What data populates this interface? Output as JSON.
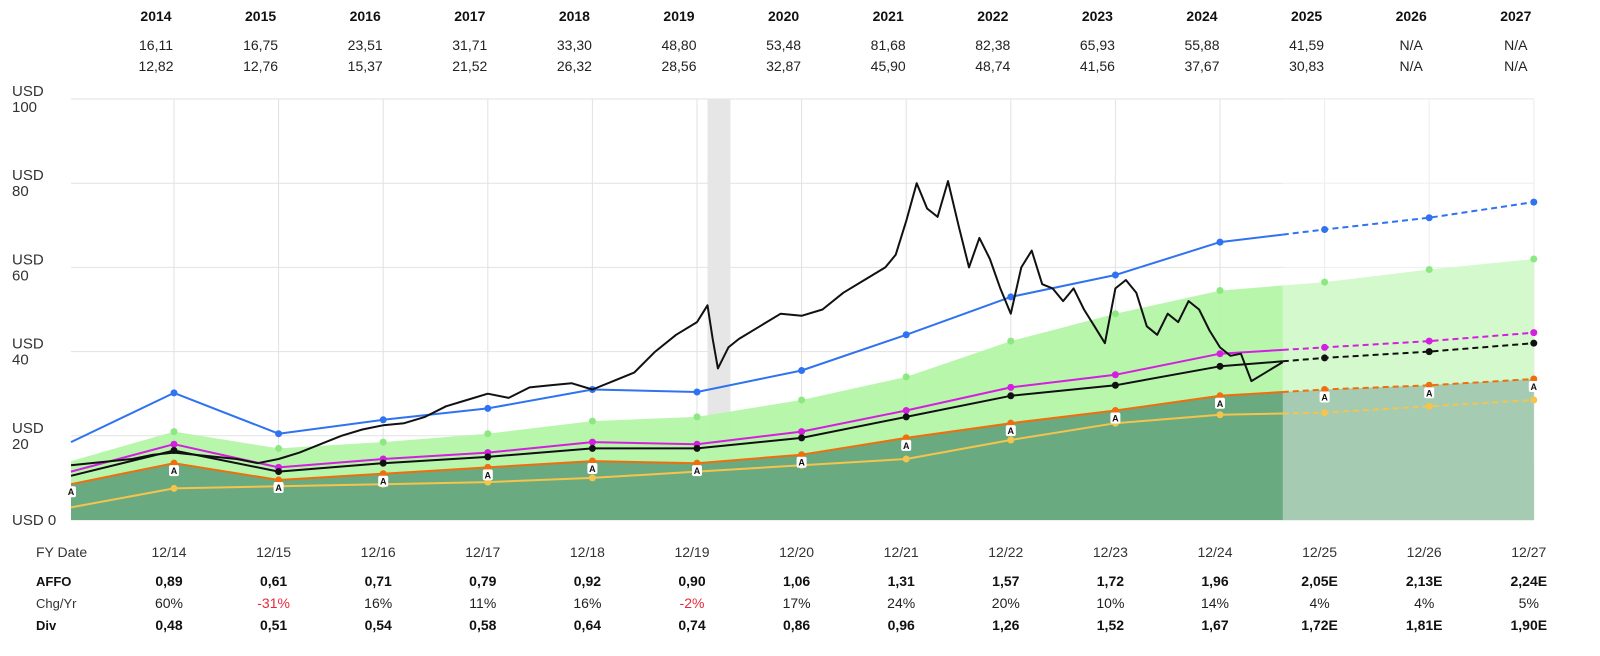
{
  "chart_data": {
    "type": "line",
    "y_unit": "USD",
    "ylim": [
      0,
      100
    ],
    "y_ticks": [
      {
        "label": "USD 0",
        "value": 0
      },
      {
        "label": "USD 20",
        "value": 20
      },
      {
        "label": "USD 40",
        "value": 40
      },
      {
        "label": "USD 60",
        "value": 60
      },
      {
        "label": "USD 80",
        "value": 80
      },
      {
        "label": "USD 100",
        "value": 100
      }
    ],
    "grid": true,
    "fy_date_label": "FY Date",
    "year_labels": [
      "2014",
      "2015",
      "2016",
      "2017",
      "2018",
      "2019",
      "2020",
      "2021",
      "2022",
      "2023",
      "2024",
      "2025",
      "2026",
      "2027"
    ],
    "price_high": [
      "16,11",
      "16,75",
      "23,51",
      "31,71",
      "33,30",
      "48,80",
      "53,48",
      "81,68",
      "82,38",
      "65,93",
      "55,88",
      "41,59",
      "N/A",
      "N/A"
    ],
    "price_low": [
      "12,82",
      "12,76",
      "15,37",
      "21,52",
      "26,32",
      "28,56",
      "32,87",
      "45,90",
      "48,74",
      "41,56",
      "37,67",
      "30,83",
      "N/A",
      "N/A"
    ],
    "x_labels": [
      "12/14",
      "12/15",
      "12/16",
      "12/17",
      "12/18",
      "12/19",
      "12/20",
      "12/21",
      "12/22",
      "12/23",
      "12/24",
      "12/25",
      "12/26",
      "12/27"
    ],
    "fiscal_x": [
      2014,
      2015,
      2016,
      2017,
      2018,
      2019,
      2020,
      2021,
      2022,
      2023,
      2024,
      2025,
      2026,
      2027
    ],
    "forecast_start": 2024.6,
    "recession_band": [
      2019.1,
      2019.32
    ],
    "colors": {
      "blue": "#2f73f0",
      "green_band": "#b3f5a6",
      "dark_green": "#6aaa80",
      "magenta": "#d41ee0",
      "black": "#111111",
      "orange": "#f06e0c",
      "yellow": "#f5c44c",
      "negative": "#e8283c"
    },
    "series": [
      {
        "id": "upper",
        "values": [
          18.5,
          30.2,
          20.5,
          23.8,
          26.5,
          31.0,
          30.4,
          35.5,
          44.0,
          53.0,
          58.2,
          66.0,
          69.0,
          71.8,
          75.5
        ]
      },
      {
        "id": "band",
        "values": [
          14.0,
          21.0,
          17.0,
          18.5,
          20.5,
          23.5,
          24.5,
          28.5,
          34.0,
          42.5,
          49.0,
          54.5,
          56.5,
          59.5,
          62.0
        ]
      },
      {
        "id": "magenta",
        "values": [
          11.5,
          18.0,
          12.5,
          14.5,
          16.0,
          18.5,
          18.0,
          21.0,
          26.0,
          31.5,
          34.5,
          39.5,
          41.0,
          42.5,
          44.5
        ]
      },
      {
        "id": "black",
        "values": [
          10.5,
          16.5,
          11.5,
          13.5,
          15.0,
          17.0,
          17.0,
          19.5,
          24.5,
          29.5,
          32.0,
          36.5,
          38.5,
          40.0,
          42.0
        ]
      },
      {
        "id": "orange",
        "values": [
          8.5,
          13.5,
          9.5,
          11.0,
          12.5,
          14.0,
          13.5,
          15.5,
          19.5,
          23.0,
          26.0,
          29.5,
          31.0,
          32.0,
          33.5
        ]
      },
      {
        "id": "yellow",
        "values": [
          3.0,
          7.5,
          8.0,
          8.5,
          9.0,
          10.0,
          11.5,
          13.0,
          14.5,
          19.0,
          23.0,
          25.0,
          25.5,
          27.0,
          28.5
        ]
      }
    ],
    "series_x": [
      2013,
      2014,
      2015,
      2016,
      2017,
      2018,
      2019,
      2020,
      2021,
      2022,
      2023,
      2024,
      2025,
      2026,
      2027
    ],
    "price": {
      "x": [
        2013.0,
        2013.2,
        2013.4,
        2013.6,
        2013.8,
        2014.0,
        2014.2,
        2014.4,
        2014.6,
        2014.8,
        2015.0,
        2015.2,
        2015.4,
        2015.6,
        2015.8,
        2016.0,
        2016.2,
        2016.4,
        2016.6,
        2016.8,
        2017.0,
        2017.2,
        2017.4,
        2017.6,
        2017.8,
        2018.0,
        2018.2,
        2018.4,
        2018.6,
        2018.8,
        2019.0,
        2019.1,
        2019.15,
        2019.2,
        2019.3,
        2019.4,
        2019.6,
        2019.8,
        2020.0,
        2020.2,
        2020.4,
        2020.6,
        2020.8,
        2020.9,
        2021.0,
        2021.1,
        2021.2,
        2021.3,
        2021.4,
        2021.5,
        2021.6,
        2021.7,
        2021.8,
        2021.9,
        2022.0,
        2022.1,
        2022.2,
        2022.3,
        2022.4,
        2022.5,
        2022.6,
        2022.7,
        2022.8,
        2022.9,
        2023.0,
        2023.1,
        2023.2,
        2023.3,
        2023.4,
        2023.5,
        2023.6,
        2023.7,
        2023.8,
        2023.9,
        2024.0,
        2024.1,
        2024.2,
        2024.3,
        2024.4,
        2024.6
      ],
      "y": [
        13.0,
        13.5,
        14.0,
        14.5,
        15.5,
        16.0,
        15.5,
        15.0,
        14.5,
        13.5,
        14.5,
        16.0,
        18.0,
        20.0,
        21.5,
        22.5,
        23.0,
        24.5,
        27.0,
        28.5,
        30.0,
        29.0,
        31.5,
        32.0,
        32.5,
        31.0,
        33.0,
        35.0,
        40.0,
        44.0,
        47.0,
        51.0,
        43.0,
        36.0,
        41.0,
        43.0,
        46.0,
        49.0,
        48.5,
        50.0,
        54.0,
        57.0,
        60.0,
        63.0,
        71.0,
        80.0,
        74.0,
        72.0,
        80.5,
        70.0,
        60.0,
        67.0,
        62.0,
        55.0,
        49.0,
        60.0,
        64.0,
        56.0,
        55.0,
        52.0,
        55.0,
        50.0,
        46.0,
        42.0,
        55.0,
        57.0,
        54.0,
        46.0,
        44.0,
        49.0,
        47.0,
        52.0,
        50.0,
        45.0,
        41.0,
        39.0,
        39.5,
        33.0,
        34.5,
        37.5
      ]
    },
    "badge_letter": "A",
    "rows": [
      {
        "label": "AFFO",
        "style": "bold",
        "values": [
          "0,89",
          "0,61",
          "0,71",
          "0,79",
          "0,92",
          "0,90",
          "1,06",
          "1,31",
          "1,57",
          "1,72",
          "1,96",
          "2,05E",
          "2,13E",
          "2,24E"
        ]
      },
      {
        "label": "Chg/Yr",
        "style": "normal",
        "values": [
          "60%",
          "-31%",
          "16%",
          "11%",
          "16%",
          "-2%",
          "17%",
          "24%",
          "20%",
          "10%",
          "14%",
          "4%",
          "4%",
          "5%"
        ],
        "negative": [
          false,
          true,
          false,
          false,
          false,
          true,
          false,
          false,
          false,
          false,
          false,
          false,
          false,
          false
        ]
      },
      {
        "label": "Div",
        "style": "bold",
        "values": [
          "0,48",
          "0,51",
          "0,54",
          "0,58",
          "0,64",
          "0,74",
          "0,86",
          "0,96",
          "1,26",
          "1,52",
          "1,67",
          "1,72E",
          "1,81E",
          "1,90E"
        ]
      }
    ]
  }
}
